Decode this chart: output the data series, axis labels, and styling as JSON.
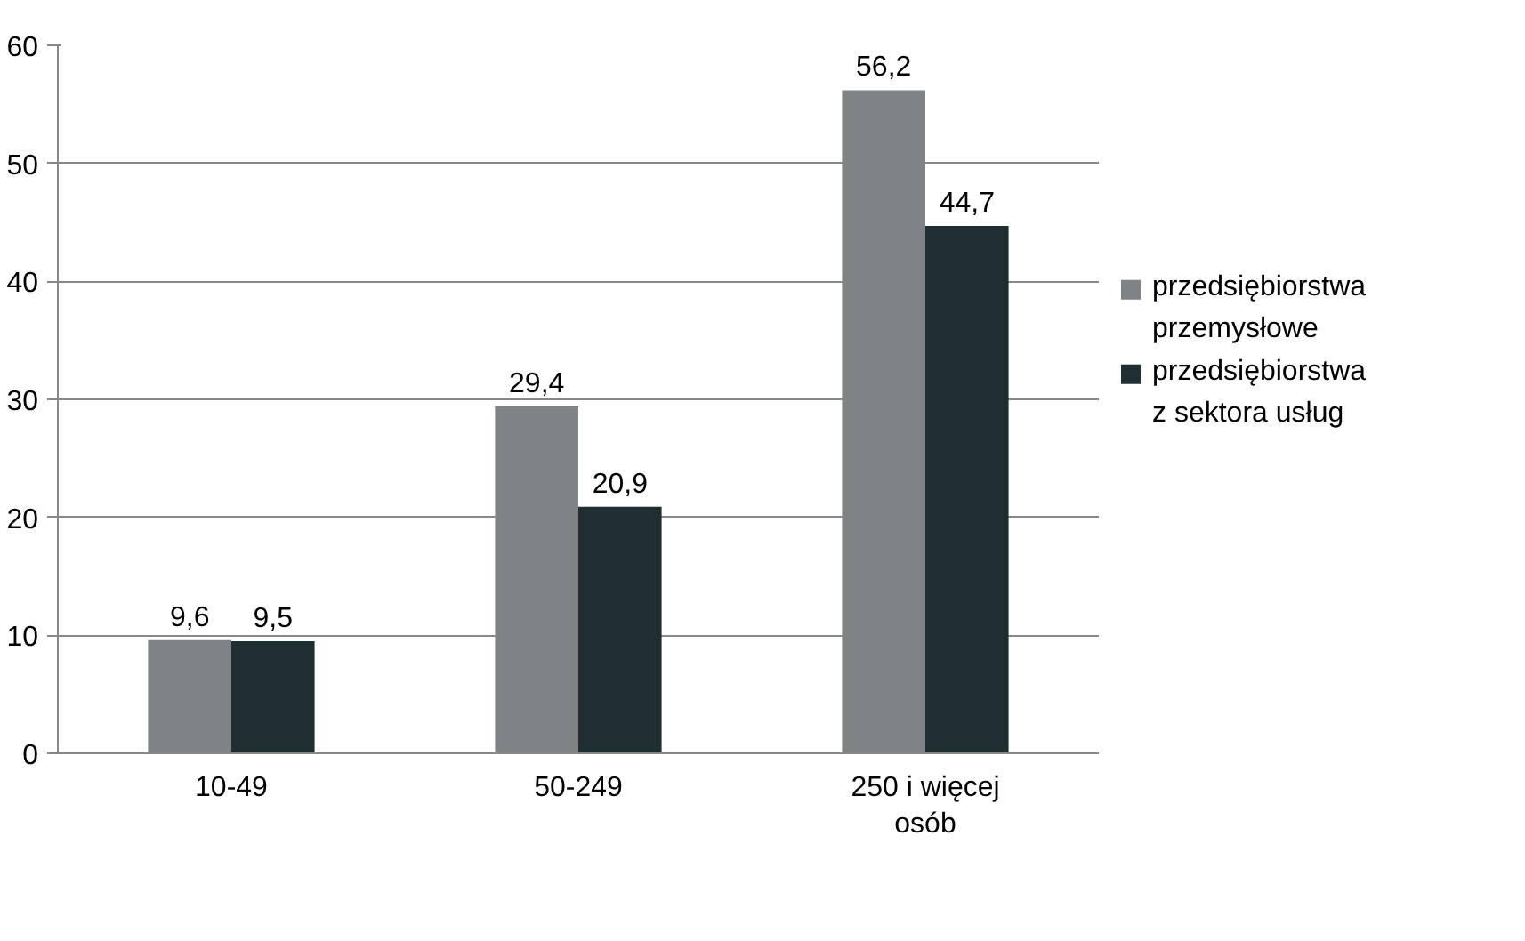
{
  "chart_data": {
    "type": "bar",
    "categories": [
      "10-49",
      "50-249",
      "250 i więcej osób"
    ],
    "series": [
      {
        "name": "przedsiębiorstwa przemysłowe",
        "color": "#7f8385",
        "values": [
          9.6,
          29.4,
          56.2
        ],
        "value_labels": [
          "9,6",
          "29,4",
          "56,2"
        ]
      },
      {
        "name": "przedsiębiorstwa z sektora usług",
        "color": "#1f2e31",
        "values": [
          9.5,
          20.9,
          44.7
        ],
        "value_labels": [
          "9,5",
          "20,9",
          "44,7"
        ]
      }
    ],
    "ylim": [
      0,
      60
    ],
    "yticks": [
      0,
      10,
      20,
      30,
      40,
      50,
      60
    ],
    "grid": "y",
    "legend": "right"
  }
}
